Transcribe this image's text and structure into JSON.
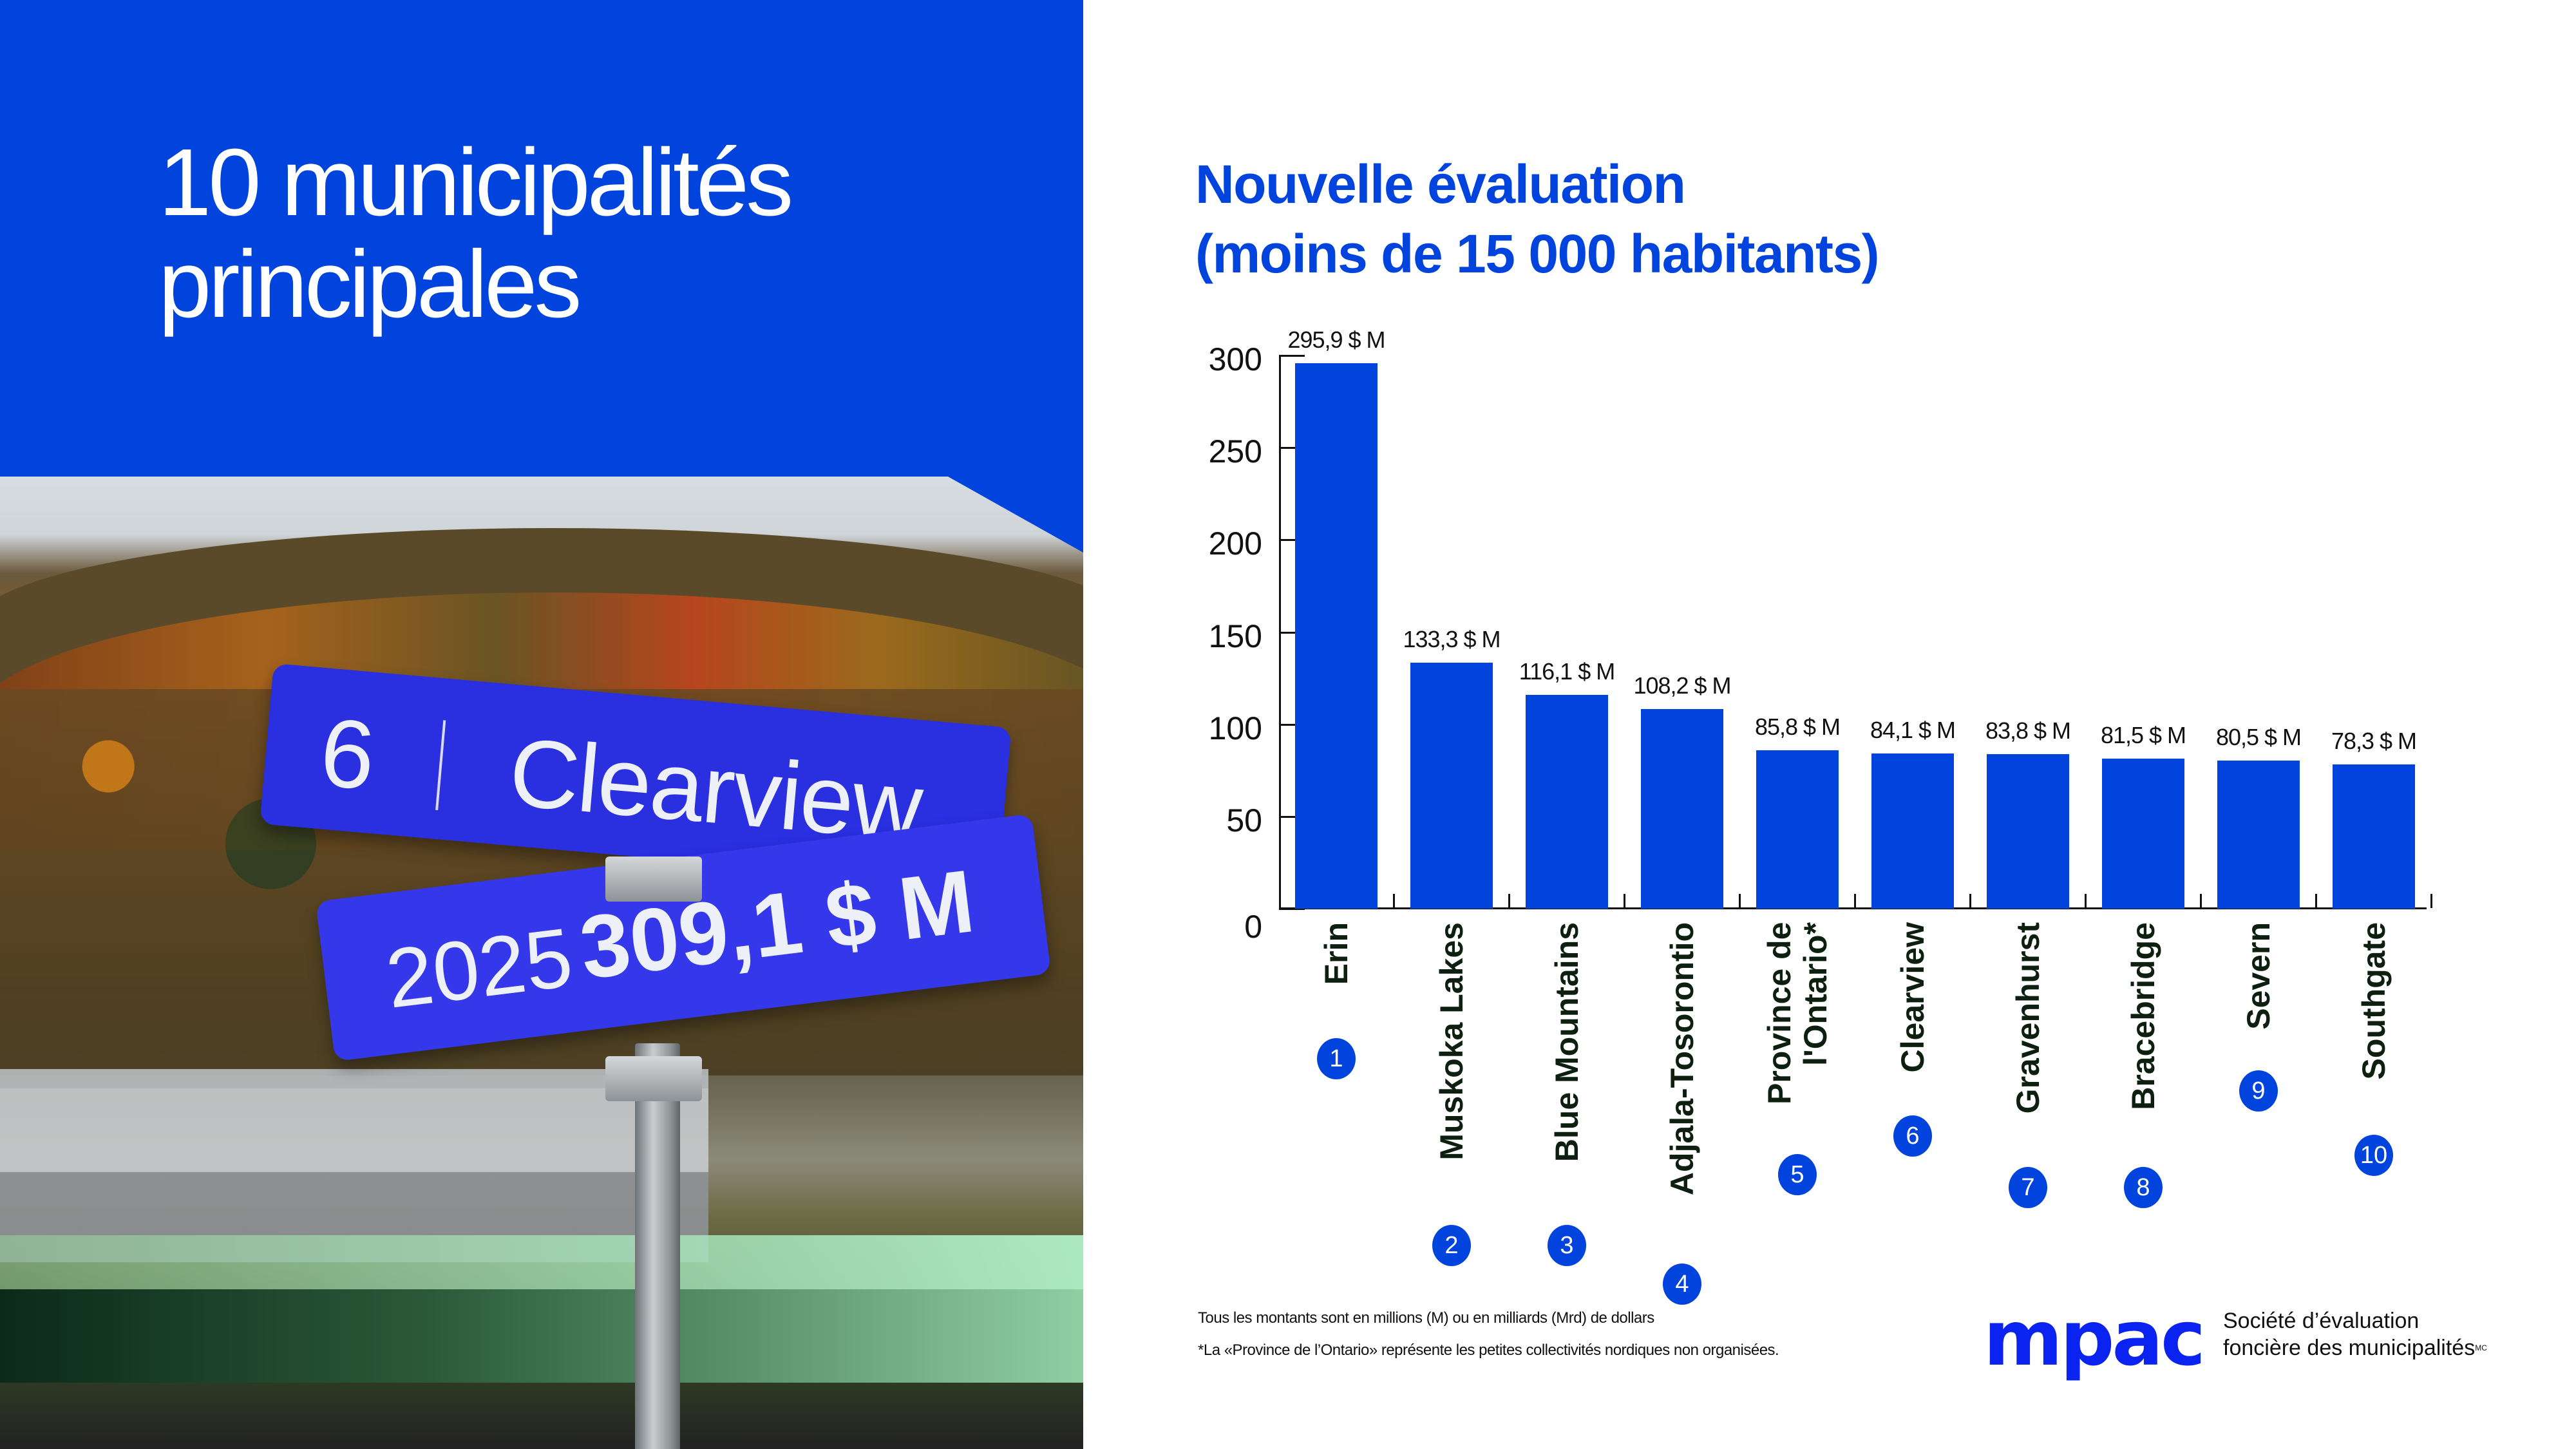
{
  "left_panel": {
    "title_line1": "10 municipalités",
    "title_line2": "principales",
    "sign_top": {
      "rank": "6",
      "name": "Clearview"
    },
    "sign_bottom": {
      "year": "2025",
      "amount": "309,1 $ M"
    }
  },
  "chart": {
    "title_line1": "Nouvelle évaluation",
    "title_line2": "(moins de 15 000 habitants)"
  },
  "chart_data": {
    "type": "bar",
    "title": "Nouvelle évaluation (moins de 15 000 habitants)",
    "xlabel": "",
    "ylabel": "",
    "ylim": [
      0,
      300
    ],
    "yticks": [
      "0",
      "50",
      "100",
      "150",
      "200",
      "250",
      "300"
    ],
    "grid": false,
    "legend": null,
    "categories": [
      "Erin",
      "Muskoka Lakes",
      "Blue Mountains",
      "Adjala-Tosorontio",
      "Province de l'Ontario*",
      "Clearview",
      "Gravenhurst",
      "Bracebridge",
      "Severn",
      "Southgate"
    ],
    "ranks": [
      "1",
      "2",
      "3",
      "4",
      "5",
      "6",
      "7",
      "8",
      "9",
      "10"
    ],
    "values": [
      295.9,
      133.3,
      116.1,
      108.2,
      85.8,
      84.1,
      83.8,
      81.5,
      80.5,
      78.3
    ],
    "value_labels": [
      "295,9 $ M",
      "133,3 $ M",
      "116,1 $ M",
      "108,2 $ M",
      "85,8 $ M",
      "84,1 $ M",
      "83,8 $ M",
      "81,5 $ M",
      "80,5 $ M",
      "78,3 $ M"
    ],
    "units": "millions de dollars",
    "bar_color": "#0044dd"
  },
  "footnotes": {
    "note1": "Tous les montants sont en millions (M) ou en milliards (Mrd) de dollars",
    "note2": "*La «Province de l’Ontario» représente les petites collectivités nordiques non organisées."
  },
  "logo": {
    "mark": "mpac",
    "line1": "Société d’évaluation",
    "line2": "foncière des municipalités",
    "trademark": "MC"
  },
  "colors": {
    "brand_blue": "#0044dd",
    "logo_blue": "#0a23f0",
    "label_dark": "#0d2010"
  }
}
